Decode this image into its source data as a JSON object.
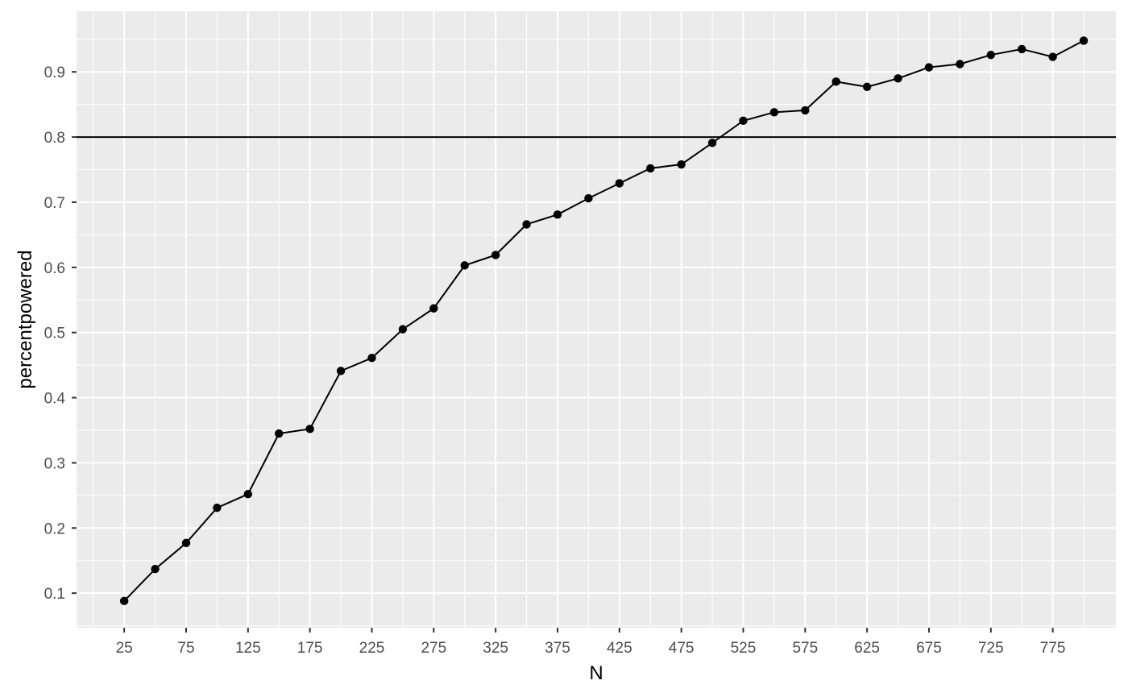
{
  "chart_data": {
    "type": "line",
    "xlabel": "N",
    "ylabel": "percentpowered",
    "x_ticks": [
      25,
      75,
      125,
      175,
      225,
      275,
      325,
      375,
      425,
      475,
      525,
      575,
      625,
      675,
      725,
      775
    ],
    "y_ticks": [
      0.1,
      0.2,
      0.3,
      0.4,
      0.5,
      0.6,
      0.7,
      0.8,
      0.9
    ],
    "xlim": [
      -13.5,
      826
    ],
    "ylim": [
      0.047,
      0.993
    ],
    "hline": 0.8,
    "grid": true,
    "legend": "none",
    "colors": {
      "panel": "#ebebeb",
      "grid": "#ffffff",
      "series": "#000000",
      "tick_text": "#4d4d4d",
      "tick_mark": "#333333"
    },
    "series": [
      {
        "x": [
          25,
          50,
          75,
          100,
          125,
          150,
          175,
          200,
          225,
          250,
          275,
          300,
          325,
          350,
          375,
          400,
          425,
          450,
          475,
          500,
          525,
          550,
          575,
          600,
          625,
          650,
          675,
          700,
          725,
          750,
          775,
          800
        ],
        "values": [
          0.088,
          0.137,
          0.177,
          0.231,
          0.252,
          0.345,
          0.352,
          0.441,
          0.461,
          0.505,
          0.537,
          0.603,
          0.619,
          0.666,
          0.681,
          0.706,
          0.729,
          0.752,
          0.758,
          0.791,
          0.825,
          0.838,
          0.841,
          0.885,
          0.877,
          0.89,
          0.907,
          0.912,
          0.926,
          0.935,
          0.923,
          0.948
        ]
      }
    ]
  }
}
